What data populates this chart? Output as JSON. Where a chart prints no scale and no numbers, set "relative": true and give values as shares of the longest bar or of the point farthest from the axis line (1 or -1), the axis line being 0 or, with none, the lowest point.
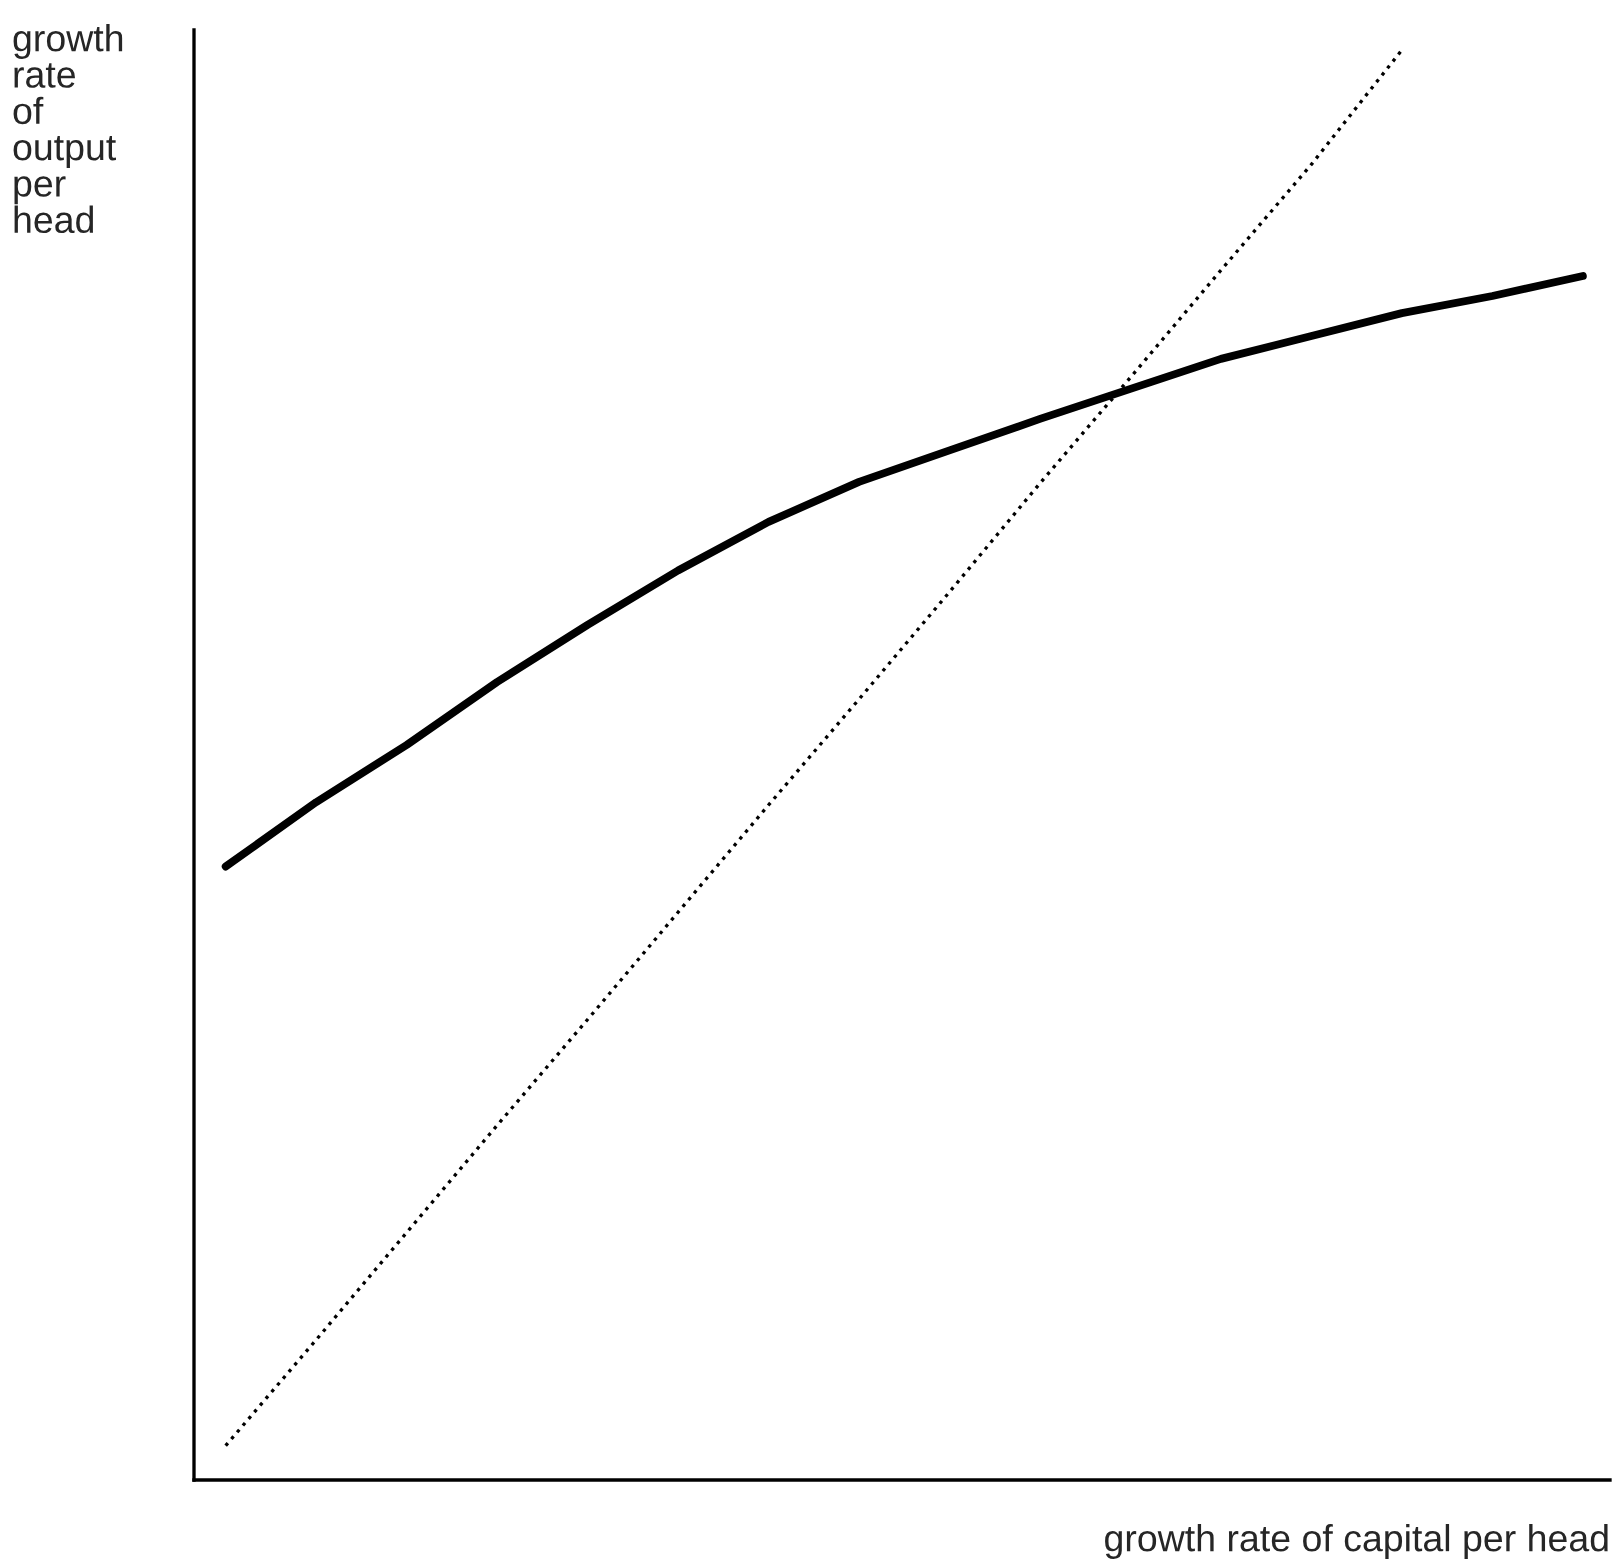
{
  "chart_data": {
    "type": "line",
    "relative": true,
    "xlabel": "growth rate of capital per head",
    "ylabel": "growth\nrate\nof\noutput\nper\nhead",
    "marker": "none",
    "categories": [
      null,
      null,
      null,
      null,
      null,
      null,
      null,
      null,
      null,
      null,
      null,
      null,
      null,
      null,
      null,
      null
    ],
    "series": [
      {
        "color": "#000000",
        "line_style": "solid",
        "values": [
          0.429,
          0.474,
          0.514,
          0.558,
          0.598,
          0.636,
          0.67,
          0.698,
          0.72,
          0.742,
          0.763,
          0.784,
          0.8,
          0.816,
          0.828,
          0.842
        ]
      },
      {
        "color": "#000000",
        "line_style": "dotted",
        "values": [
          0.024,
          0.098,
          0.173,
          0.248,
          0.322,
          0.397,
          0.472,
          0.546,
          0.621,
          0.697,
          0.771,
          0.846,
          0.92,
          1.0,
          null,
          null
        ]
      }
    ]
  }
}
